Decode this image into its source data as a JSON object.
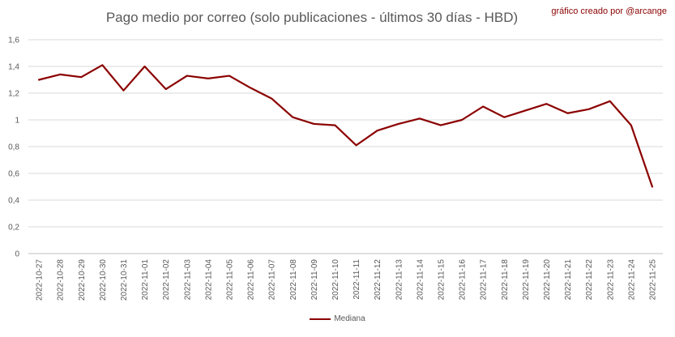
{
  "title": "Pago medio por correo (solo publicaciones - últimos 30 días - HBD)",
  "credit": "gráfico creado por @arcange",
  "chart_data": {
    "type": "line",
    "title": "Pago medio por correo (solo publicaciones - últimos 30 días - HBD)",
    "xlabel": "",
    "ylabel": "",
    "ylim": [
      0,
      1.6
    ],
    "yticks": [
      "0",
      "0,2",
      "0,4",
      "0,6",
      "0,8",
      "1",
      "1,2",
      "1,4",
      "1,6"
    ],
    "grid": true,
    "legend_position": "bottom",
    "categories": [
      "2022-10-27",
      "2022-10-28",
      "2022-10-29",
      "2022-10-30",
      "2022-10-31",
      "2022-11-01",
      "2022-11-02",
      "2022-11-03",
      "2022-11-04",
      "2022-11-05",
      "2022-11-06",
      "2022-11-07",
      "2022-11-08",
      "2022-11-09",
      "2022-11-10",
      "2022-11-11",
      "2022-11-12",
      "2022-11-13",
      "2022-11-14",
      "2022-11-15",
      "2022-11-16",
      "2022-11-17",
      "2022-11-18",
      "2022-11-19",
      "2022-11-20",
      "2022-11-21",
      "2022-11-22",
      "2022-11-23",
      "2022-11-24",
      "2022-11-25"
    ],
    "series": [
      {
        "name": "Mediana",
        "color": "#8b0000",
        "values": [
          1.3,
          1.34,
          1.32,
          1.41,
          1.22,
          1.4,
          1.23,
          1.33,
          1.31,
          1.33,
          1.24,
          1.16,
          1.02,
          0.97,
          0.96,
          0.81,
          0.92,
          0.97,
          1.01,
          0.96,
          1.0,
          1.1,
          1.02,
          1.07,
          1.12,
          1.05,
          1.08,
          1.14,
          0.96,
          0.5
        ]
      }
    ]
  }
}
